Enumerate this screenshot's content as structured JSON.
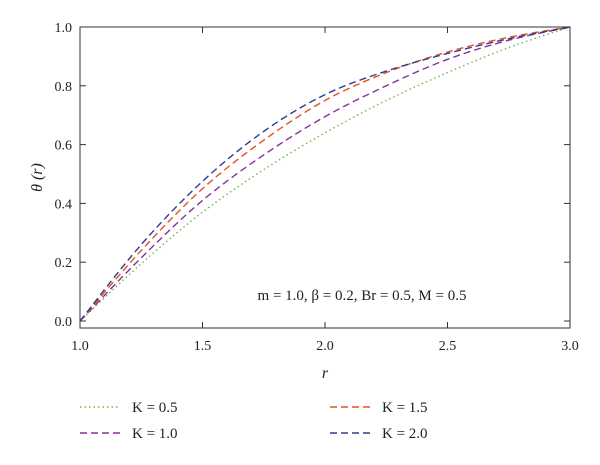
{
  "chart_data": {
    "type": "line",
    "xlabel": "r",
    "ylabel": "θ (r)",
    "xlim": [
      1.0,
      3.0
    ],
    "ylim": [
      0.0,
      1.0
    ],
    "xticks": [
      "1.0",
      "1.5",
      "2.0",
      "2.5",
      "3.0"
    ],
    "yticks": [
      "0.0",
      "0.2",
      "0.4",
      "0.6",
      "0.8",
      "1.0"
    ],
    "annotation": "m = 1.0, β = 0.2, Br = 0.5, M = 0.5",
    "legend_position": "bottom",
    "grid": false,
    "x": [
      1.0,
      1.25,
      1.5,
      1.75,
      2.0,
      2.25,
      2.5,
      2.75,
      3.0
    ],
    "series": [
      {
        "name": "K = 0.5",
        "color": "#6fb64a",
        "style": "dotted",
        "values": [
          0.0,
          0.195,
          0.37,
          0.515,
          0.64,
          0.75,
          0.845,
          0.93,
          1.0
        ]
      },
      {
        "name": "K = 1.0",
        "color": "#8a2f9c",
        "style": "dashed",
        "values": [
          0.0,
          0.215,
          0.41,
          0.565,
          0.695,
          0.8,
          0.89,
          0.955,
          1.0
        ]
      },
      {
        "name": "K = 1.5",
        "color": "#e8511c",
        "style": "dashed",
        "values": [
          0.0,
          0.24,
          0.45,
          0.615,
          0.75,
          0.845,
          0.915,
          0.965,
          1.0
        ]
      },
      {
        "name": "K = 2.0",
        "color": "#2e3d8f",
        "style": "dashed",
        "values": [
          0.0,
          0.26,
          0.475,
          0.645,
          0.77,
          0.85,
          0.91,
          0.96,
          1.0
        ]
      }
    ]
  }
}
